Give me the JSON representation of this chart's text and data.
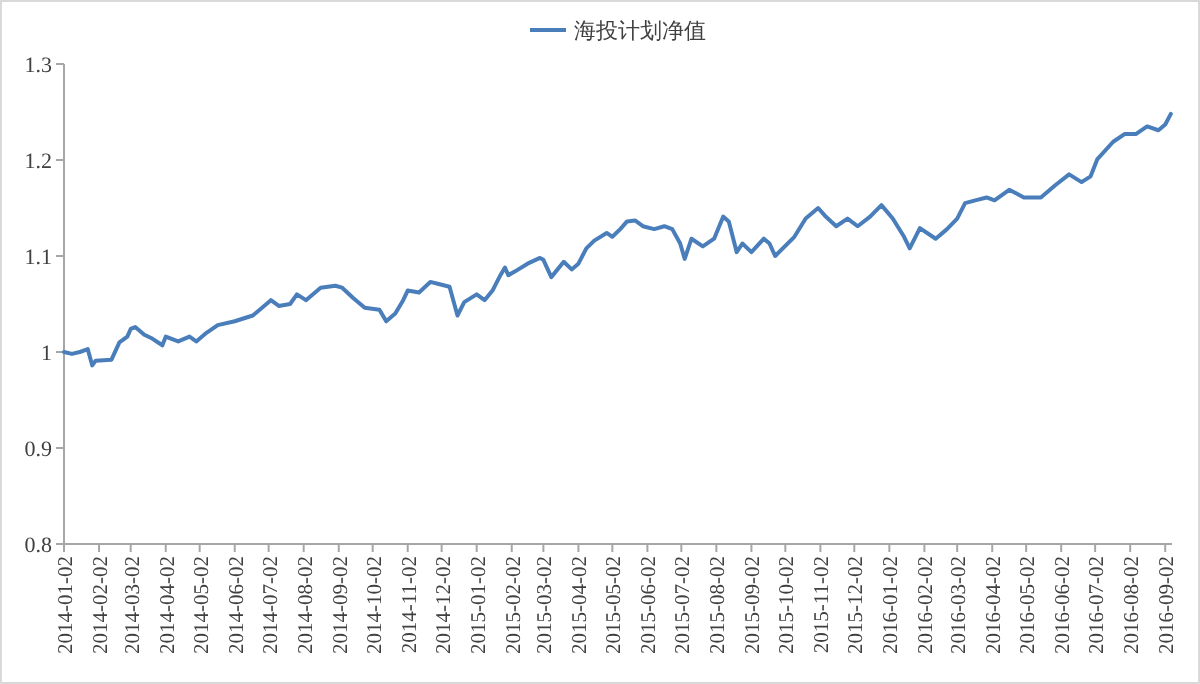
{
  "chart_data": {
    "type": "line",
    "legend": "top",
    "grid": false,
    "marker": "none",
    "line_style": "solid",
    "x": [
      "2014-01-02",
      "2014-01-09",
      "2014-01-16",
      "2014-01-23",
      "2014-01-27",
      "2014-01-30",
      "2014-02-13",
      "2014-02-20",
      "2014-02-27",
      "2014-03-02",
      "2014-03-06",
      "2014-03-14",
      "2014-03-21",
      "2014-03-30",
      "2014-04-02",
      "2014-04-13",
      "2014-04-23",
      "2014-04-29",
      "2014-05-08",
      "2014-05-18",
      "2014-06-02",
      "2014-06-18",
      "2014-06-28",
      "2014-07-04",
      "2014-07-11",
      "2014-07-21",
      "2014-07-27",
      "2014-08-04",
      "2014-08-17",
      "2014-08-30",
      "2014-09-05",
      "2014-09-15",
      "2014-09-25",
      "2014-10-08",
      "2014-10-14",
      "2014-10-22",
      "2014-10-29",
      "2014-11-02",
      "2014-11-12",
      "2014-11-22",
      "2014-12-02",
      "2014-12-09",
      "2014-12-16",
      "2014-12-22",
      "2015-01-02",
      "2015-01-09",
      "2015-01-16",
      "2015-01-23",
      "2015-01-27",
      "2015-01-30",
      "2015-02-05",
      "2015-02-16",
      "2015-02-27",
      "2015-03-02",
      "2015-03-09",
      "2015-03-20",
      "2015-03-27",
      "2015-04-02",
      "2015-04-09",
      "2015-04-16",
      "2015-04-27",
      "2015-05-02",
      "2015-05-09",
      "2015-05-15",
      "2015-05-22",
      "2015-05-29",
      "2015-06-08",
      "2015-06-17",
      "2015-06-24",
      "2015-07-01",
      "2015-07-05",
      "2015-07-11",
      "2015-07-21",
      "2015-07-31",
      "2015-08-08",
      "2015-08-13",
      "2015-08-20",
      "2015-08-25",
      "2015-09-02",
      "2015-09-13",
      "2015-09-18",
      "2015-09-23",
      "2015-10-10",
      "2015-10-20",
      "2015-10-31",
      "2015-11-06",
      "2015-11-16",
      "2015-11-26",
      "2015-12-05",
      "2015-12-16",
      "2015-12-26",
      "2016-01-05",
      "2016-01-15",
      "2016-01-20",
      "2016-01-29",
      "2016-02-12",
      "2016-02-22",
      "2016-03-02",
      "2016-03-09",
      "2016-03-18",
      "2016-03-28",
      "2016-04-04",
      "2016-04-17",
      "2016-04-30",
      "2016-05-15",
      "2016-05-28",
      "2016-06-09",
      "2016-06-20",
      "2016-06-28",
      "2016-07-04",
      "2016-07-18",
      "2016-07-28",
      "2016-08-07",
      "2016-08-17",
      "2016-08-27",
      "2016-09-02",
      "2016-09-07"
    ],
    "series": [
      {
        "name": "海投计划净值",
        "color": "#4a7ebb",
        "values": [
          1.0,
          0.998,
          1.0,
          1.003,
          0.986,
          0.991,
          0.992,
          1.01,
          1.016,
          1.024,
          1.026,
          1.018,
          1.014,
          1.007,
          1.016,
          1.011,
          1.016,
          1.011,
          1.02,
          1.028,
          1.032,
          1.038,
          1.048,
          1.054,
          1.048,
          1.05,
          1.06,
          1.054,
          1.067,
          1.069,
          1.067,
          1.056,
          1.046,
          1.044,
          1.032,
          1.04,
          1.054,
          1.064,
          1.062,
          1.073,
          1.07,
          1.068,
          1.038,
          1.052,
          1.06,
          1.054,
          1.064,
          1.08,
          1.088,
          1.08,
          1.084,
          1.092,
          1.098,
          1.096,
          1.078,
          1.094,
          1.086,
          1.092,
          1.108,
          1.116,
          1.124,
          1.12,
          1.128,
          1.136,
          1.137,
          1.131,
          1.128,
          1.131,
          1.128,
          1.113,
          1.097,
          1.118,
          1.11,
          1.118,
          1.141,
          1.136,
          1.104,
          1.113,
          1.104,
          1.118,
          1.113,
          1.1,
          1.12,
          1.139,
          1.15,
          1.142,
          1.131,
          1.139,
          1.131,
          1.141,
          1.153,
          1.139,
          1.12,
          1.108,
          1.129,
          1.118,
          1.128,
          1.139,
          1.155,
          1.158,
          1.161,
          1.158,
          1.169,
          1.161,
          1.161,
          1.174,
          1.185,
          1.177,
          1.183,
          1.201,
          1.219,
          1.227,
          1.227,
          1.235,
          1.231,
          1.237,
          1.248
        ]
      }
    ],
    "xlim": [
      "2014-01-02",
      "2016-09-08"
    ],
    "xticks": [
      {
        "value": "2014-01-02",
        "label": "2014-01-02"
      },
      {
        "value": "2014-02-02",
        "label": "2014-02-02"
      },
      {
        "value": "2014-03-02",
        "label": "2014-03-02"
      },
      {
        "value": "2014-04-02",
        "label": "2014-04-02"
      },
      {
        "value": "2014-05-02",
        "label": "2014-05-02"
      },
      {
        "value": "2014-06-02",
        "label": "2014-06-02"
      },
      {
        "value": "2014-07-02",
        "label": "2014-07-02"
      },
      {
        "value": "2014-08-02",
        "label": "2014-08-02"
      },
      {
        "value": "2014-09-02",
        "label": "2014-09-02"
      },
      {
        "value": "2014-10-02",
        "label": "2014-10-02"
      },
      {
        "value": "2014-11-02",
        "label": "2014-11-02"
      },
      {
        "value": "2014-12-02",
        "label": "2014-12-02"
      },
      {
        "value": "2015-01-02",
        "label": "2015-01-02"
      },
      {
        "value": "2015-02-02",
        "label": "2015-02-02"
      },
      {
        "value": "2015-03-02",
        "label": "2015-03-02"
      },
      {
        "value": "2015-04-02",
        "label": "2015-04-02"
      },
      {
        "value": "2015-05-02",
        "label": "2015-05-02"
      },
      {
        "value": "2015-06-02",
        "label": "2015-06-02"
      },
      {
        "value": "2015-07-02",
        "label": "2015-07-02"
      },
      {
        "value": "2015-08-02",
        "label": "2015-08-02"
      },
      {
        "value": "2015-09-02",
        "label": "2015-09-02"
      },
      {
        "value": "2015-10-02",
        "label": "2015-10-02"
      },
      {
        "value": "2015-11-02",
        "label": "2015-11-02"
      },
      {
        "value": "2015-12-02",
        "label": "2015-12-02"
      },
      {
        "value": "2016-01-02",
        "label": "2016-01-02"
      },
      {
        "value": "2016-02-02",
        "label": "2016-02-02"
      },
      {
        "value": "2016-03-02",
        "label": "2016-03-02"
      },
      {
        "value": "2016-04-02",
        "label": "2016-04-02"
      },
      {
        "value": "2016-05-02",
        "label": "2016-05-02"
      },
      {
        "value": "2016-06-02",
        "label": "2016-06-02"
      },
      {
        "value": "2016-07-02",
        "label": "2016-07-02"
      },
      {
        "value": "2016-08-02",
        "label": "2016-08-02"
      },
      {
        "value": "2016-09-02",
        "label": "2016-09-02"
      }
    ],
    "ylim": [
      0.8,
      1.3
    ],
    "yticks": [
      0.8,
      0.9,
      1,
      1.1,
      1.2,
      1.3
    ]
  }
}
